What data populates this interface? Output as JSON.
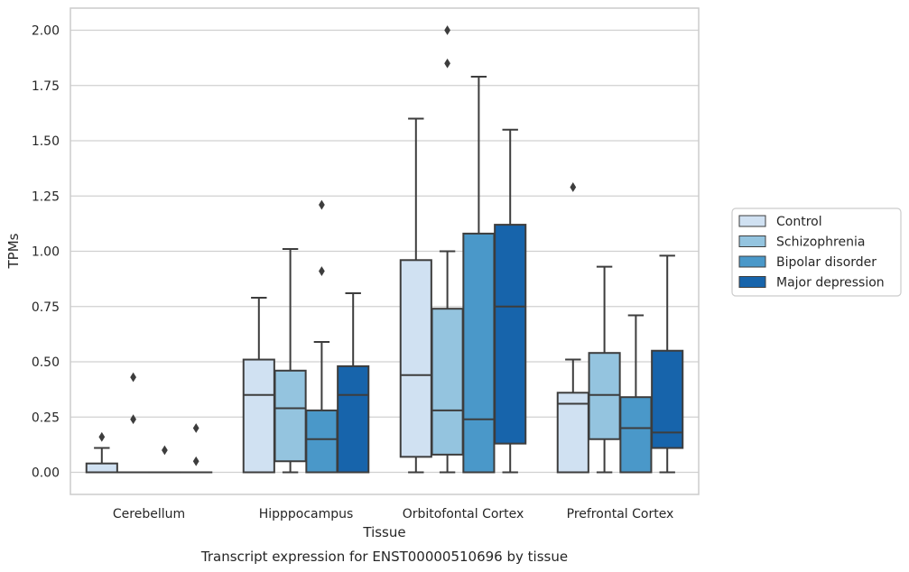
{
  "chart_data": {
    "type": "box",
    "xlabel": "Tissue",
    "ylabel": "TPMs",
    "caption": "Transcript expression for ENST00000510696 by tissue",
    "ylim": [
      -0.1,
      2.1
    ],
    "yticks": [
      "0.00",
      "0.25",
      "0.50",
      "0.75",
      "1.00",
      "1.25",
      "1.50",
      "1.75",
      "2.00"
    ],
    "ytick_values": [
      0,
      0.25,
      0.5,
      0.75,
      1.0,
      1.25,
      1.5,
      1.75,
      2.0
    ],
    "grid": true,
    "legend_position": "right",
    "categories": [
      "Cerebellum",
      "Hipppocampus",
      "Orbitofontal Cortex",
      "Prefrontal Cortex"
    ],
    "series": [
      {
        "name": "Control",
        "color": "#d0e1f2",
        "boxes": [
          {
            "whislo": 0,
            "q1": 0,
            "med": 0,
            "q3": 0.04,
            "whishi": 0.11,
            "fliers": [
              0.16
            ]
          },
          {
            "whislo": 0,
            "q1": 0,
            "med": 0.35,
            "q3": 0.51,
            "whishi": 0.79,
            "fliers": []
          },
          {
            "whislo": 0,
            "q1": 0.07,
            "med": 0.44,
            "q3": 0.96,
            "whishi": 1.6,
            "fliers": []
          },
          {
            "whislo": 0,
            "q1": 0,
            "med": 0.31,
            "q3": 0.36,
            "whishi": 0.51,
            "fliers": [
              1.29
            ]
          }
        ]
      },
      {
        "name": "Schizophrenia",
        "color": "#94c4df",
        "boxes": [
          {
            "whislo": 0,
            "q1": 0,
            "med": 0,
            "q3": 0,
            "whishi": 0,
            "fliers": [
              0.24,
              0.43
            ]
          },
          {
            "whislo": 0,
            "q1": 0.05,
            "med": 0.29,
            "q3": 0.46,
            "whishi": 1.01,
            "fliers": []
          },
          {
            "whislo": 0,
            "q1": 0.08,
            "med": 0.28,
            "q3": 0.74,
            "whishi": 1.0,
            "fliers": [
              1.85,
              2.0
            ]
          },
          {
            "whislo": 0,
            "q1": 0.15,
            "med": 0.35,
            "q3": 0.54,
            "whishi": 0.93,
            "fliers": []
          }
        ]
      },
      {
        "name": "Bipolar disorder",
        "color": "#4a98c9",
        "boxes": [
          {
            "whislo": 0,
            "q1": 0,
            "med": 0,
            "q3": 0,
            "whishi": 0,
            "fliers": [
              0.1
            ]
          },
          {
            "whislo": 0,
            "q1": 0,
            "med": 0.15,
            "q3": 0.28,
            "whishi": 0.59,
            "fliers": [
              0.91,
              1.21
            ]
          },
          {
            "whislo": 0,
            "q1": 0,
            "med": 0.24,
            "q3": 1.08,
            "whishi": 1.79,
            "fliers": []
          },
          {
            "whislo": 0,
            "q1": 0,
            "med": 0.2,
            "q3": 0.34,
            "whishi": 0.71,
            "fliers": []
          }
        ]
      },
      {
        "name": "Major depression",
        "color": "#1764ab",
        "boxes": [
          {
            "whislo": 0,
            "q1": 0,
            "med": 0,
            "q3": 0,
            "whishi": 0,
            "fliers": [
              0.05,
              0.2
            ]
          },
          {
            "whislo": 0,
            "q1": 0,
            "med": 0.35,
            "q3": 0.48,
            "whishi": 0.81,
            "fliers": []
          },
          {
            "whislo": 0,
            "q1": 0.13,
            "med": 0.75,
            "q3": 1.12,
            "whishi": 1.55,
            "fliers": []
          },
          {
            "whislo": 0,
            "q1": 0.11,
            "med": 0.18,
            "q3": 0.55,
            "whishi": 0.98,
            "fliers": []
          }
        ]
      }
    ]
  }
}
